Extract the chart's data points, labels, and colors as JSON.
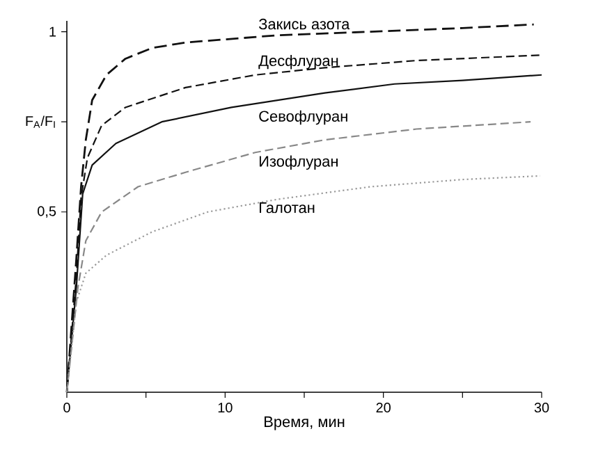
{
  "chart_data": {
    "type": "line",
    "xlabel": "Время, мин",
    "xlim": [
      0,
      30
    ],
    "ylim": [
      0,
      1.03
    ],
    "xticks": [
      0,
      {
        "value": 5,
        "label": null
      },
      10,
      {
        "value": 15,
        "label": null
      },
      20,
      {
        "value": 25,
        "label": null
      },
      30
    ],
    "yticks": [
      {
        "value": 0.5,
        "label": "0,5"
      },
      {
        "value": 0.75,
        "label": "F$_{A}$/F$_{I}$"
      },
      {
        "value": 1,
        "label": "1"
      }
    ],
    "grid": false,
    "legend": false,
    "marker": "none",
    "series": [
      {
        "name": "Закись азота",
        "color": "#111111",
        "line_style": "dashed",
        "x": [
          0,
          0.6,
          0.9,
          1.2,
          1.6,
          2.5,
          3.7,
          5.4,
          7.5,
          13.3,
          19.2,
          25,
          29.5
        ],
        "values": [
          0,
          0.37,
          0.57,
          0.7,
          0.81,
          0.88,
          0.925,
          0.955,
          0.97,
          0.99,
          1.0,
          1.01,
          1.02
        ]
      },
      {
        "name": "Десфлуран",
        "color": "#111111",
        "line_style": "dashed",
        "x": [
          0,
          0.6,
          0.9,
          1.3,
          2.2,
          3.7,
          7.5,
          11.9,
          16.3,
          22.1,
          30
        ],
        "values": [
          0,
          0.32,
          0.54,
          0.65,
          0.74,
          0.79,
          0.845,
          0.88,
          0.9,
          0.92,
          0.935
        ]
      },
      {
        "name": "Севофлуран",
        "color": "#111111",
        "line_style": "solid",
        "x": [
          0,
          0.6,
          1.0,
          1.6,
          3.1,
          6,
          10.4,
          16.3,
          20.7,
          25,
          30
        ],
        "values": [
          0,
          0.29,
          0.55,
          0.63,
          0.69,
          0.75,
          0.79,
          0.83,
          0.855,
          0.865,
          0.88
        ]
      },
      {
        "name": "Изофлуран",
        "color": "#888888",
        "line_style": "dashed",
        "x": [
          0,
          0.7,
          1.2,
          2.2,
          4.5,
          7.5,
          11.9,
          16.3,
          22.1,
          29.3
        ],
        "values": [
          0,
          0.29,
          0.42,
          0.5,
          0.57,
          0.61,
          0.665,
          0.7,
          0.73,
          0.75
        ]
      },
      {
        "name": "Галотан",
        "color": "#999999",
        "line_style": "dotted",
        "x": [
          0,
          0.6,
          1.2,
          2.5,
          5.4,
          8.9,
          13.3,
          19.2,
          25,
          29.9
        ],
        "values": [
          0,
          0.25,
          0.33,
          0.38,
          0.445,
          0.5,
          0.535,
          0.57,
          0.59,
          0.6
        ]
      }
    ]
  }
}
